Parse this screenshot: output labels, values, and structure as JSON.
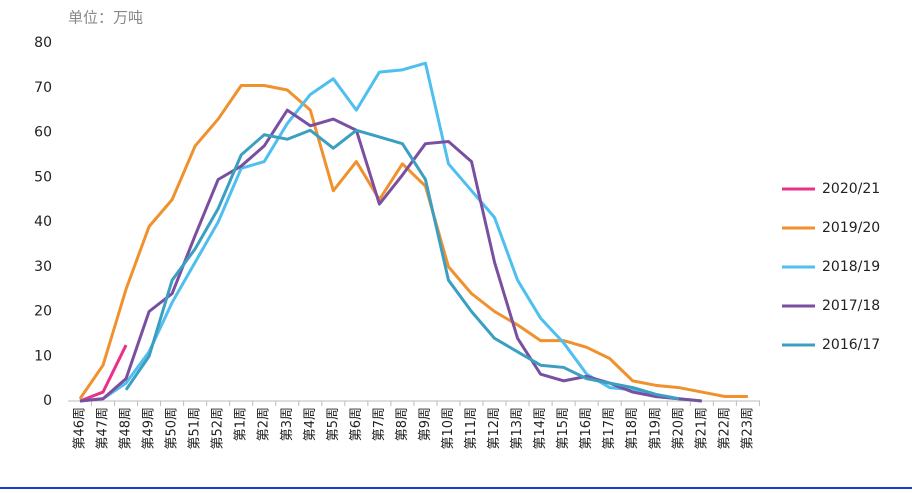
{
  "chart_data": {
    "type": "line",
    "unit_label": "单位：万吨",
    "categories": [
      "第46周",
      "第47周",
      "第48周",
      "第49周",
      "第50周",
      "第51周",
      "第52周",
      "第1周",
      "第2周",
      "第3周",
      "第4周",
      "第5周",
      "第6周",
      "第7周",
      "第8周",
      "第9周",
      "第10周",
      "第11周",
      "第12周",
      "第13周",
      "第14周",
      "第15周",
      "第16周",
      "第17周",
      "第18周",
      "第19周",
      "第20周",
      "第21周",
      "第22周",
      "第23周"
    ],
    "series": [
      {
        "name": "2020/21",
        "color": "#e8318a",
        "values": [
          0,
          2,
          12.5,
          null,
          null,
          null,
          null,
          null,
          null,
          null,
          null,
          null,
          null,
          null,
          null,
          null,
          null,
          null,
          null,
          null,
          null,
          null,
          null,
          null,
          null,
          null,
          null,
          null,
          null,
          null
        ]
      },
      {
        "name": "2019/20",
        "color": "#f0912e",
        "values": [
          0.5,
          8,
          25,
          39,
          45,
          57,
          63,
          70.5,
          70.5,
          69.5,
          65,
          47,
          53.5,
          45,
          53,
          48,
          30,
          24,
          20,
          17,
          13.5,
          13.5,
          12,
          9.5,
          4.5,
          3.5,
          3,
          2,
          1,
          1
        ]
      },
      {
        "name": "2018/19",
        "color": "#4fbfef",
        "values": [
          0,
          0.5,
          4,
          11,
          22,
          31,
          40,
          52,
          53.5,
          62,
          68.5,
          72,
          65,
          73.5,
          74,
          75.5,
          53,
          47,
          41,
          27,
          18.5,
          13,
          6,
          3,
          2.5,
          1,
          0.5,
          0,
          null,
          null
        ]
      },
      {
        "name": "2017/18",
        "color": "#7b4fa0",
        "values": [
          0,
          0.5,
          5,
          20,
          24,
          37,
          49.5,
          52.5,
          57,
          65,
          61.5,
          63,
          60.5,
          44,
          50.5,
          57.5,
          58,
          53.5,
          31,
          14,
          6,
          4.5,
          5.5,
          4,
          2,
          1,
          0.5,
          0,
          null,
          null
        ]
      },
      {
        "name": "2016/17",
        "color": "#3a9fc0",
        "values": [
          null,
          null,
          2.5,
          10,
          27,
          34,
          43,
          55,
          59.5,
          58.5,
          60.5,
          56.5,
          60.5,
          59,
          57.5,
          49.5,
          27,
          20,
          14,
          11,
          8,
          7.5,
          5,
          4,
          3,
          1.5,
          0.5,
          null,
          null,
          null
        ]
      }
    ],
    "ylim": [
      0,
      80
    ],
    "yticks": [
      0,
      10,
      20,
      30,
      40,
      50,
      60,
      70,
      80
    ]
  }
}
